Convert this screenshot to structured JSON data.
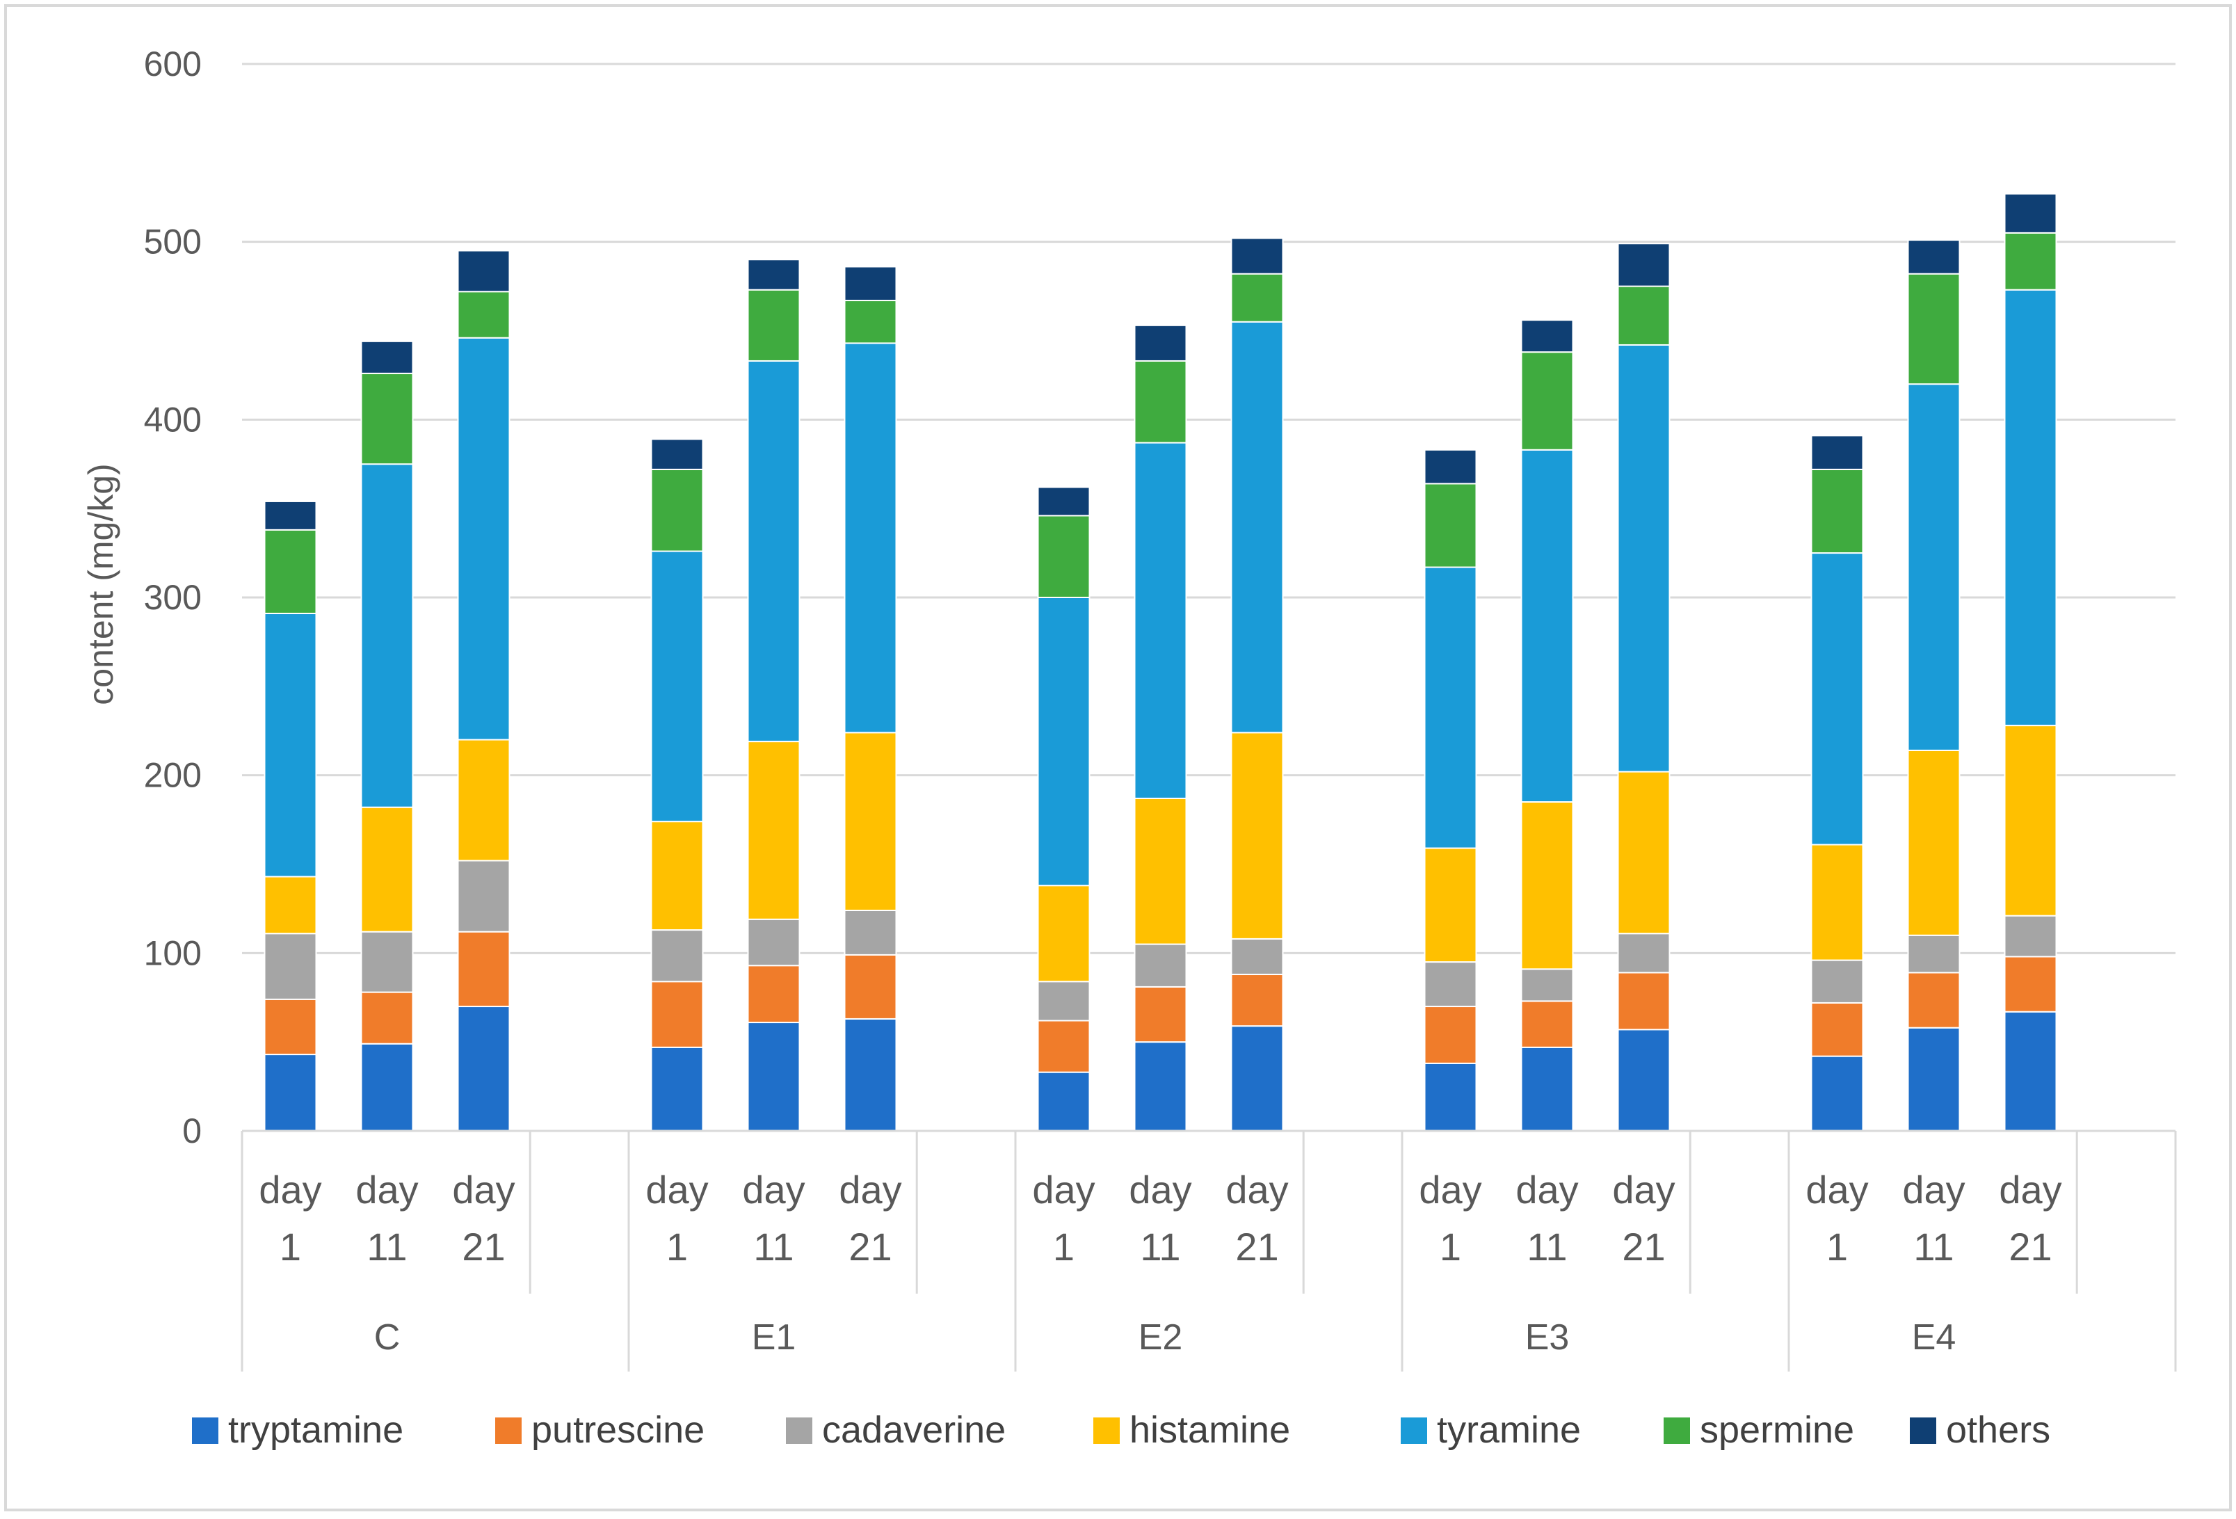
{
  "chart_data": {
    "type": "bar",
    "stacked": true,
    "title": "",
    "xlabel": "",
    "ylabel": "content (mg/kg)",
    "ylim": [
      0,
      600
    ],
    "yticks": [
      0,
      100,
      200,
      300,
      400,
      500,
      600
    ],
    "grid": "horizontal",
    "legend_position": "bottom",
    "groups": [
      {
        "label": "C",
        "categories": [
          [
            "day",
            "1"
          ],
          [
            "day",
            "11"
          ],
          [
            "day",
            "21"
          ]
        ]
      },
      {
        "label": "E1",
        "categories": [
          [
            "day",
            "1"
          ],
          [
            "day",
            "11"
          ],
          [
            "day",
            "21"
          ]
        ]
      },
      {
        "label": "E2",
        "categories": [
          [
            "day",
            "1"
          ],
          [
            "day",
            "11"
          ],
          [
            "day",
            "21"
          ]
        ]
      },
      {
        "label": "E3",
        "categories": [
          [
            "day",
            "1"
          ],
          [
            "day",
            "11"
          ],
          [
            "day",
            "21"
          ]
        ]
      },
      {
        "label": "E4",
        "categories": [
          [
            "day",
            "1"
          ],
          [
            "day",
            "11"
          ],
          [
            "day",
            "21"
          ]
        ]
      }
    ],
    "series": [
      {
        "name": "tryptamine",
        "color": "#1f6fc9",
        "values": [
          43,
          49,
          70,
          47,
          61,
          63,
          33,
          50,
          59,
          38,
          47,
          57,
          42,
          58,
          67
        ]
      },
      {
        "name": "putrescine",
        "color": "#f07c2a",
        "values": [
          31,
          29,
          42,
          37,
          32,
          36,
          29,
          31,
          29,
          32,
          26,
          32,
          30,
          31,
          31
        ]
      },
      {
        "name": "cadaverine",
        "color": "#a5a5a5",
        "values": [
          37,
          34,
          40,
          29,
          26,
          25,
          22,
          24,
          20,
          25,
          18,
          22,
          24,
          21,
          23
        ]
      },
      {
        "name": "histamine",
        "color": "#ffc000",
        "values": [
          32,
          70,
          68,
          61,
          100,
          100,
          54,
          82,
          116,
          64,
          94,
          91,
          65,
          104,
          107
        ]
      },
      {
        "name": "tyramine",
        "color": "#1a9bd7",
        "values": [
          148,
          193,
          226,
          152,
          214,
          219,
          162,
          200,
          231,
          158,
          198,
          240,
          164,
          206,
          245
        ]
      },
      {
        "name": "spermine",
        "color": "#3fab3f",
        "values": [
          47,
          51,
          26,
          46,
          40,
          24,
          46,
          46,
          27,
          47,
          55,
          33,
          47,
          62,
          32
        ]
      },
      {
        "name": "others",
        "color": "#0f3f73",
        "values": [
          16,
          18,
          23,
          17,
          17,
          19,
          16,
          20,
          20,
          19,
          18,
          24,
          19,
          19,
          22
        ]
      }
    ],
    "colors": {
      "grid": "#d9d9d9",
      "axis_text": "#595959",
      "legend_text": "#404040",
      "frame": "#d9d9d9"
    }
  }
}
